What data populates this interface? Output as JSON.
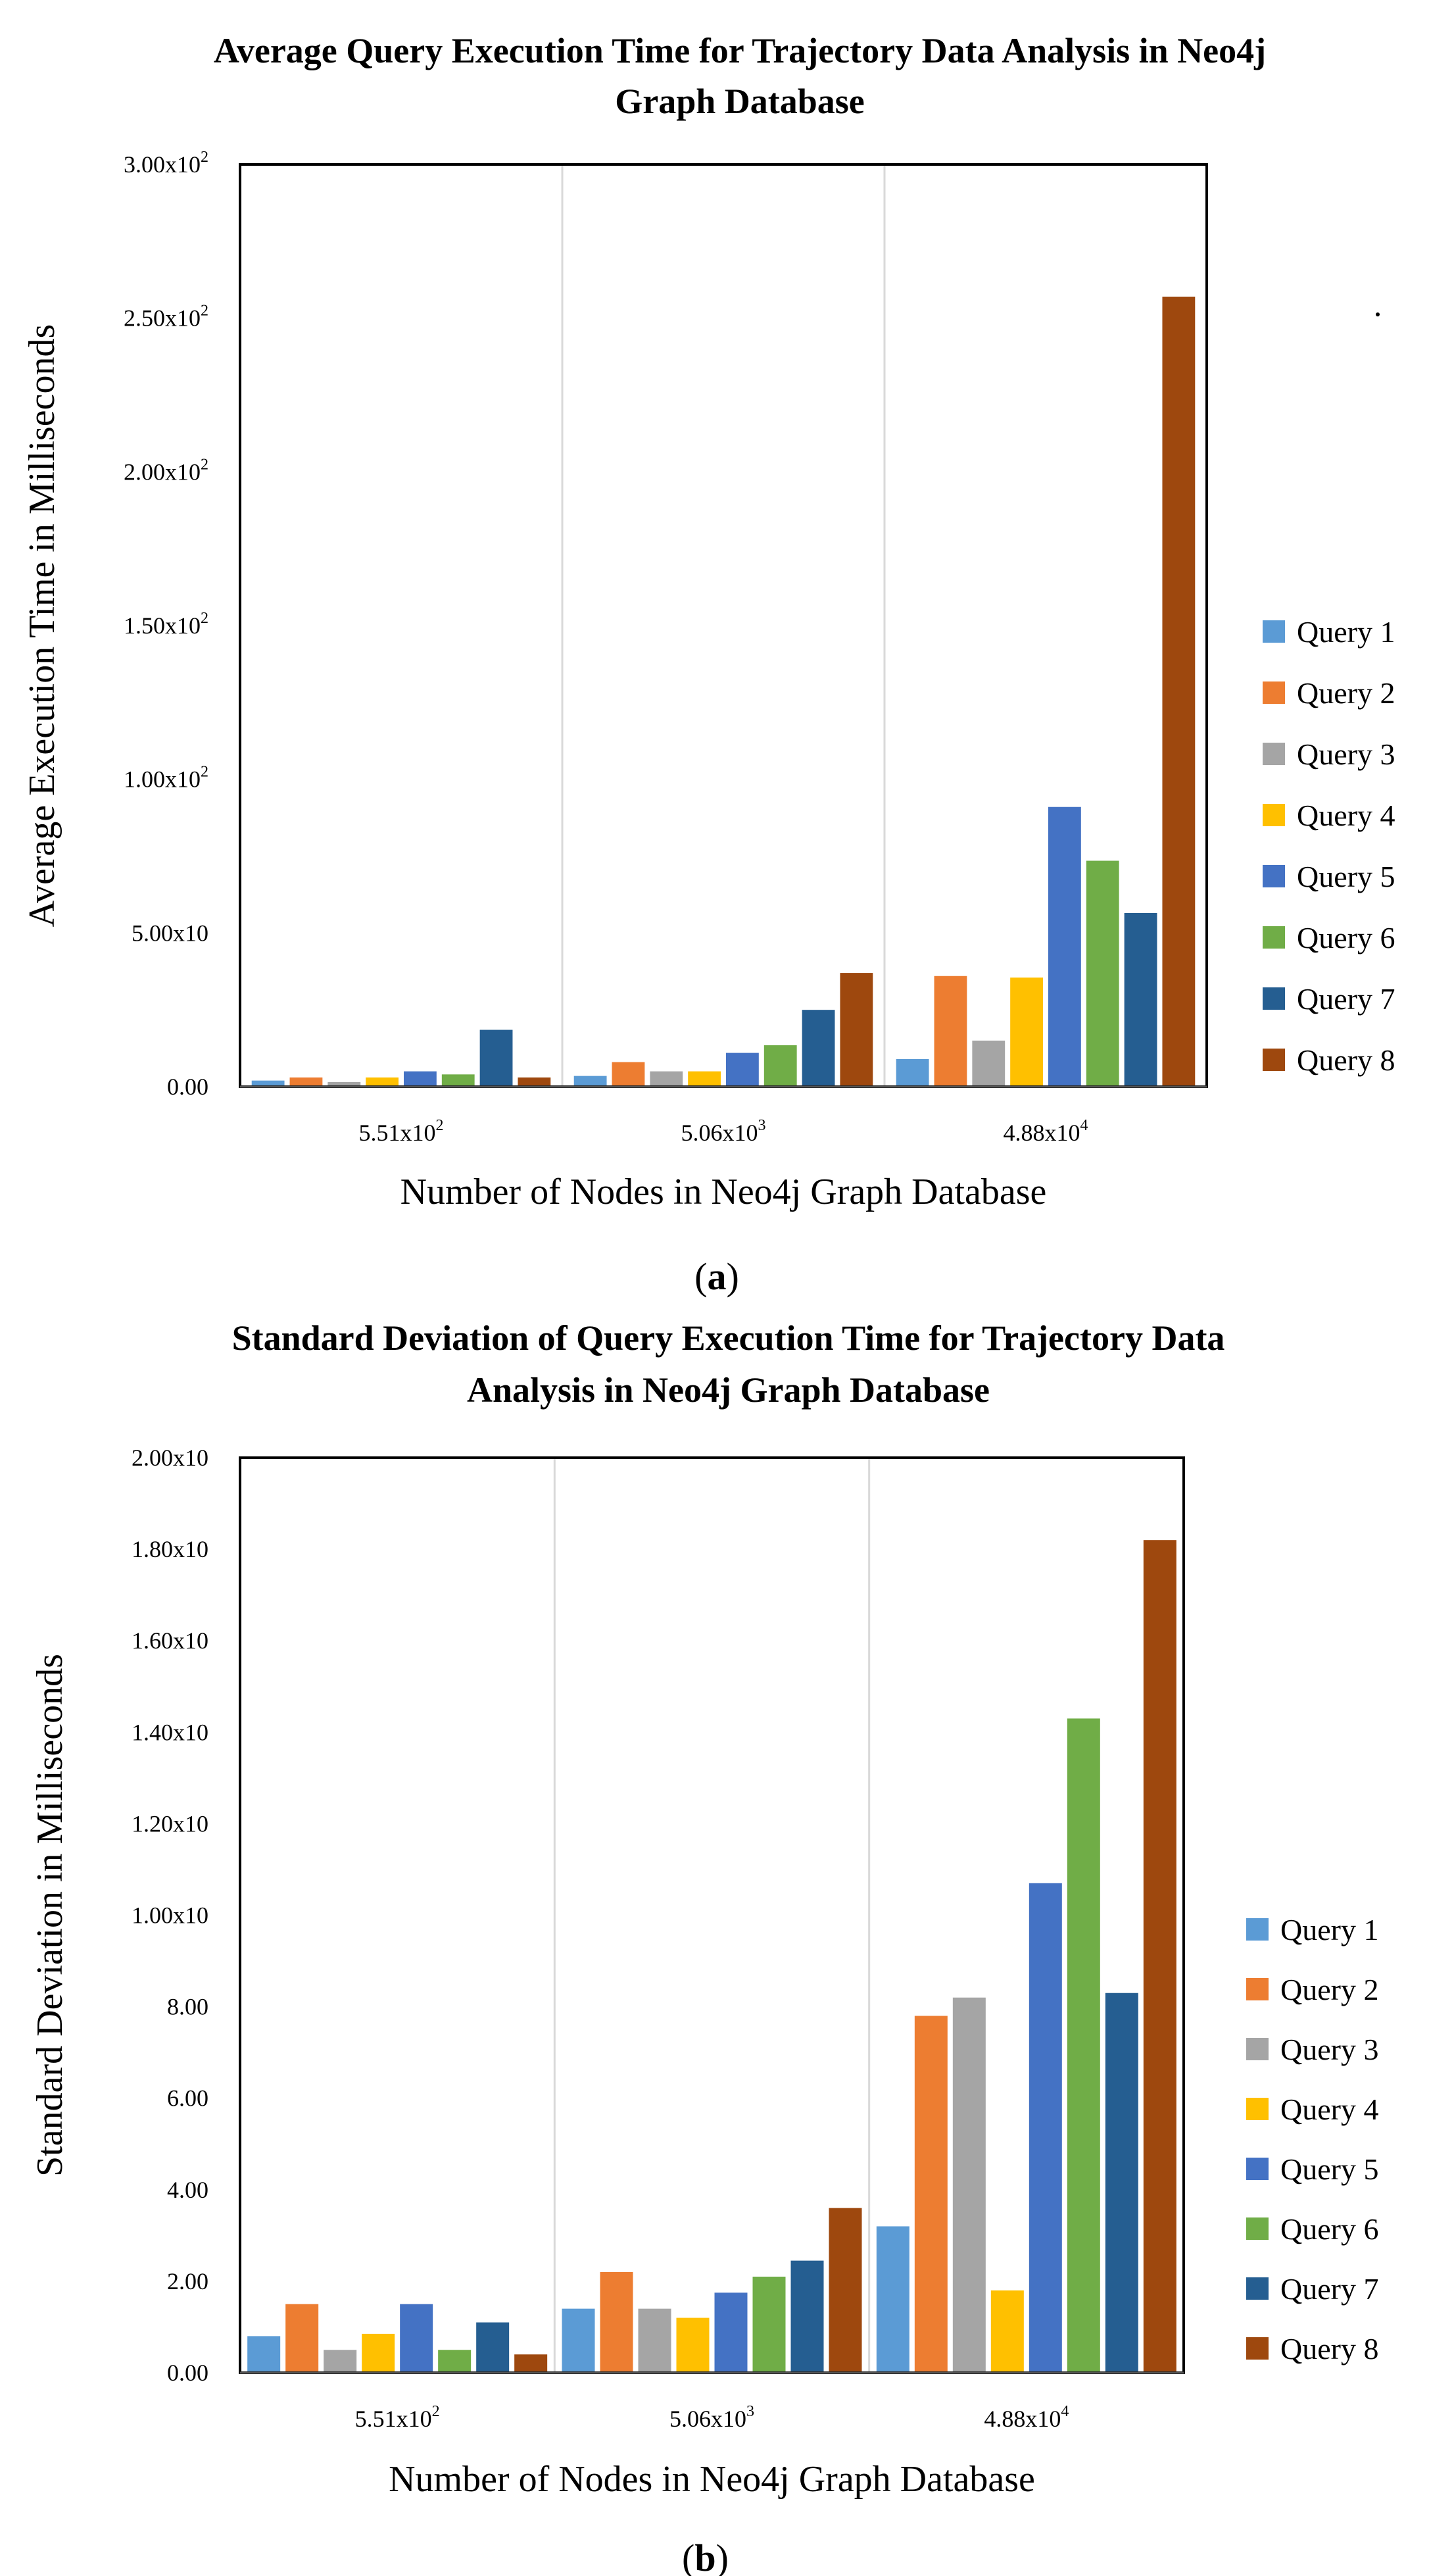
{
  "chart_data": [
    {
      "type": "bar",
      "title_lines": [
        "Average Query Execution Time for Trajectory Data Analysis in Neo4j",
        "Graph Database"
      ],
      "xlabel": "Number of Nodes in Neo4j Graph Database",
      "ylabel": "Average Execution Time in Milliseconds",
      "caption_letter": "a",
      "ylim": [
        0,
        300
      ],
      "y_ticks": [
        {
          "value": 0,
          "label": "0.00"
        },
        {
          "value": 50,
          "label": "5.00x10"
        },
        {
          "value": 100,
          "label": "1.00x10",
          "sup": "2"
        },
        {
          "value": 150,
          "label": "1.50x10",
          "sup": "2"
        },
        {
          "value": 200,
          "label": "2.00x10",
          "sup": "2"
        },
        {
          "value": 250,
          "label": "2.50x10",
          "sup": "2"
        },
        {
          "value": 300,
          "label": "3.00x10",
          "sup": "2"
        }
      ],
      "categories": [
        {
          "label": "5.51x10",
          "sup": "2"
        },
        {
          "label": "5.06x10",
          "sup": "3"
        },
        {
          "label": "4.88x10",
          "sup": "4"
        }
      ],
      "series": [
        {
          "name": "Query 1",
          "color": "#5b9bd5",
          "values": [
            2,
            3.5,
            9
          ]
        },
        {
          "name": "Query 2",
          "color": "#ed7d31",
          "values": [
            3,
            8,
            36
          ]
        },
        {
          "name": "Query 3",
          "color": "#a5a5a5",
          "values": [
            1.5,
            5,
            15
          ]
        },
        {
          "name": "Query 4",
          "color": "#ffc000",
          "values": [
            3,
            5,
            35.5
          ]
        },
        {
          "name": "Query 5",
          "color": "#4472c4",
          "values": [
            5,
            11,
            91
          ]
        },
        {
          "name": "Query 6",
          "color": "#70ad47",
          "values": [
            4,
            13.5,
            73.5
          ]
        },
        {
          "name": "Query 7",
          "color": "#255e91",
          "values": [
            18.5,
            25,
            56.5
          ]
        },
        {
          "name": "Query 8",
          "color": "#9e480e",
          "values": [
            3,
            37,
            257
          ]
        }
      ]
    },
    {
      "type": "bar",
      "title_lines": [
        "Standard Deviation of Query Execution Time for Trajectory Data",
        "Analysis in Neo4j Graph Database"
      ],
      "xlabel": "Number of Nodes in Neo4j Graph Database",
      "ylabel": "Standard Deviation in Milliseconds",
      "caption_letter": "b",
      "ylim": [
        0,
        20
      ],
      "y_ticks": [
        {
          "value": 0,
          "label": "0.00"
        },
        {
          "value": 2,
          "label": "2.00"
        },
        {
          "value": 4,
          "label": "4.00"
        },
        {
          "value": 6,
          "label": "6.00"
        },
        {
          "value": 8,
          "label": "8.00"
        },
        {
          "value": 10,
          "label": "1.00x10"
        },
        {
          "value": 12,
          "label": "1.20x10"
        },
        {
          "value": 14,
          "label": "1.40x10"
        },
        {
          "value": 16,
          "label": "1.60x10"
        },
        {
          "value": 18,
          "label": "1.80x10"
        },
        {
          "value": 20,
          "label": "2.00x10"
        }
      ],
      "categories": [
        {
          "label": "5.51x10",
          "sup": "2"
        },
        {
          "label": "5.06x10",
          "sup": "3"
        },
        {
          "label": "4.88x10",
          "sup": "4"
        }
      ],
      "series": [
        {
          "name": "Query 1",
          "color": "#5b9bd5",
          "values": [
            0.8,
            1.4,
            3.2
          ]
        },
        {
          "name": "Query 2",
          "color": "#ed7d31",
          "values": [
            1.5,
            2.2,
            7.8
          ]
        },
        {
          "name": "Query 3",
          "color": "#a5a5a5",
          "values": [
            0.5,
            1.4,
            8.2
          ]
        },
        {
          "name": "Query 4",
          "color": "#ffc000",
          "values": [
            0.85,
            1.2,
            1.8
          ]
        },
        {
          "name": "Query 5",
          "color": "#4472c4",
          "values": [
            1.5,
            1.75,
            10.7
          ]
        },
        {
          "name": "Query 6",
          "color": "#70ad47",
          "values": [
            0.5,
            2.1,
            14.3
          ]
        },
        {
          "name": "Query 7",
          "color": "#255e91",
          "values": [
            1.1,
            2.45,
            8.3
          ]
        },
        {
          "name": "Query 8",
          "color": "#9e480e",
          "values": [
            0.4,
            3.6,
            18.2
          ]
        }
      ]
    }
  ]
}
